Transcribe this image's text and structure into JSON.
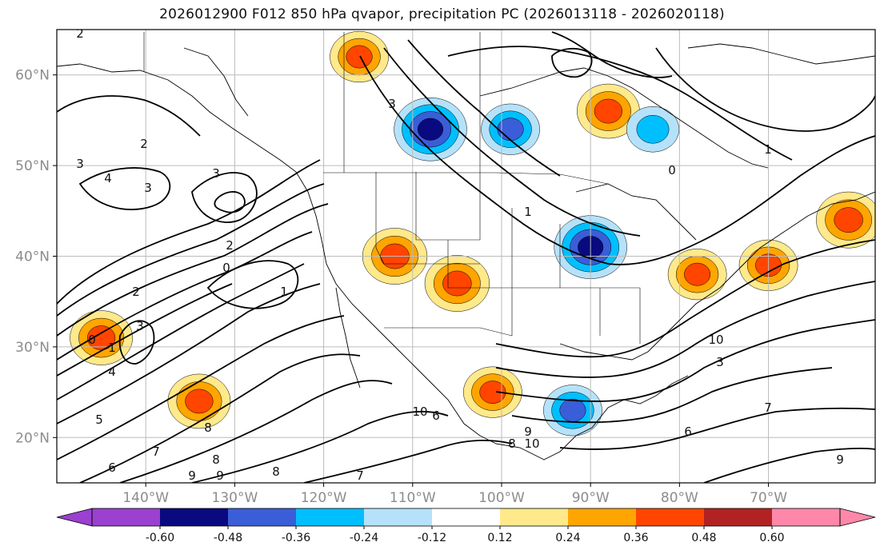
{
  "title": "2026012900 F012 850 hPa qvapor, precipitation PC (2026013118 - 2026020118)",
  "map": {
    "projection": "cylindrical lat/lon",
    "lon_range": [
      -150,
      -58
    ],
    "lat_range": [
      15,
      65
    ],
    "lat_labels": [
      "60°N",
      "50°N",
      "40°N",
      "30°N",
      "20°N"
    ],
    "lon_labels": [
      "140°W",
      "130°W",
      "120°W",
      "110°W",
      "100°W",
      "90°W",
      "80°W",
      "70°W"
    ],
    "grid": true,
    "contour_labels": [
      "2",
      "3",
      "4",
      "3",
      "2",
      "3",
      "0",
      "2",
      "1",
      "0",
      "1",
      "2",
      "3",
      "4",
      "5",
      "6",
      "7",
      "8",
      "9",
      "10",
      "6",
      "7",
      "8",
      "9",
      "10",
      "1",
      "0",
      "1",
      "3",
      "8",
      "9",
      "8",
      "6",
      "7",
      "9",
      "10",
      "3"
    ]
  },
  "colorbar": {
    "extend": "both",
    "tick_labels": [
      "-0.60",
      "-0.48",
      "-0.36",
      "-0.24",
      "-0.12",
      "0.12",
      "0.24",
      "0.36",
      "0.48",
      "0.60"
    ],
    "colors": {
      "below": "#9b40d0",
      "c1": "#0a0a80",
      "c2": "#3a5ed8",
      "c3": "#00bfff",
      "c4": "#b5e2fa",
      "c5": "#ffffff",
      "c6": "#ffe98a",
      "c7": "#ffa500",
      "c8": "#ff4500",
      "c9": "#b22222",
      "above": "#ff88aa"
    }
  },
  "chart_data": {
    "type": "heatmap",
    "title": "2026012900 F012 850 hPa qvapor, precipitation PC (2026013118 - 2026020118)",
    "fields": [
      "850 hPa qvapor (contours)",
      "precipitation PC (shaded)"
    ],
    "levels": [
      -0.6,
      -0.48,
      -0.36,
      -0.24,
      -0.12,
      0.12,
      0.24,
      0.36,
      0.48,
      0.6
    ],
    "features": [
      {
        "lon": -105,
        "lat": 37,
        "value": 0.42
      },
      {
        "lon": -112,
        "lat": 40,
        "value": 0.42
      },
      {
        "lon": -90,
        "lat": 41,
        "value": -0.5
      },
      {
        "lon": -108,
        "lat": 54,
        "value": -0.5
      },
      {
        "lon": -116,
        "lat": 62,
        "value": 0.36
      },
      {
        "lon": -88,
        "lat": 56,
        "value": 0.4
      },
      {
        "lon": -101,
        "lat": 25,
        "value": 0.36
      },
      {
        "lon": -92,
        "lat": 23,
        "value": -0.36
      },
      {
        "lon": -134,
        "lat": 24,
        "value": 0.4
      },
      {
        "lon": -145,
        "lat": 31,
        "value": 0.4
      },
      {
        "lon": -61,
        "lat": 44,
        "value": 0.42
      },
      {
        "lon": -99,
        "lat": 54,
        "value": -0.36
      },
      {
        "lon": -78,
        "lat": 38,
        "value": 0.36
      },
      {
        "lon": -70,
        "lat": 39,
        "value": 0.36
      },
      {
        "lon": -83,
        "lat": 54,
        "value": -0.3
      }
    ]
  }
}
